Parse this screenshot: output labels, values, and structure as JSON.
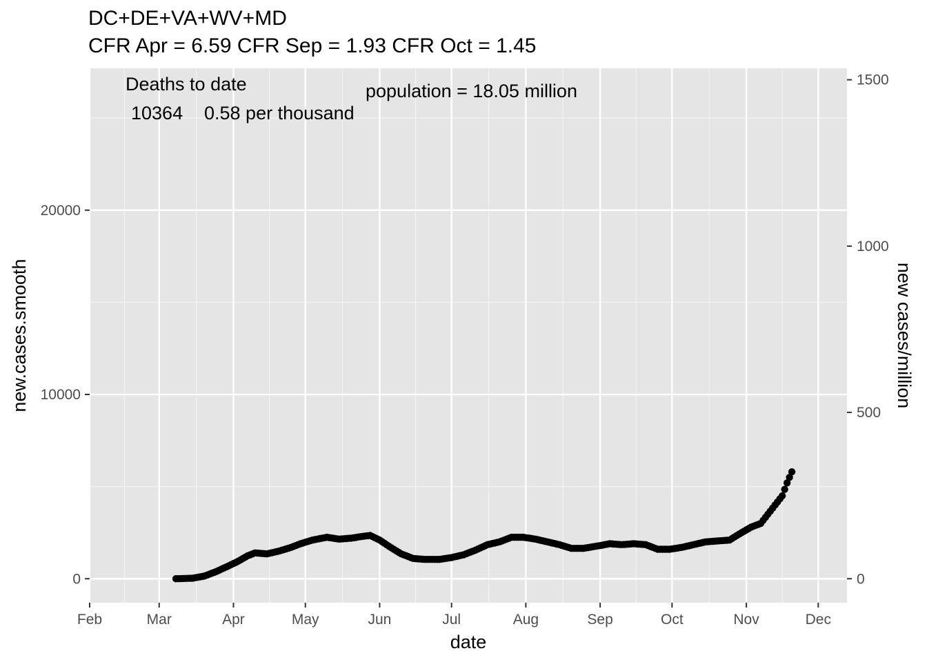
{
  "chart_data": {
    "type": "scatter",
    "title": "DC+DE+VA+WV+MD",
    "subtitle": "CFR Apr = 6.59  CFR Sep = 1.93  CFR Oct = 1.45",
    "xlabel": "date",
    "ylabel": "new.cases.smooth",
    "y2label": "new cases/million",
    "x_tick_labels": [
      "Feb",
      "Mar",
      "Apr",
      "May",
      "Jun",
      "Jul",
      "Aug",
      "Sep",
      "Oct",
      "Nov",
      "Dec"
    ],
    "y_ticks": [
      0,
      10000,
      20000
    ],
    "y_tick_labels": [
      "0",
      "10000",
      "20000"
    ],
    "y2_ticks": [
      0,
      500,
      1000,
      1500
    ],
    "y2_tick_labels": [
      "0",
      "500",
      "1000",
      "1500"
    ],
    "ylim": [
      -1300,
      27700
    ],
    "xlim": [
      "2020-02-01",
      "2020-12-13"
    ],
    "grid": true,
    "annotations": {
      "deaths_label": "Deaths to date",
      "deaths_value": "10364",
      "deaths_rate": "0.58 per thousand",
      "population": "population = 18.05 million"
    },
    "anchors": [
      [
        "2020-03-08",
        0
      ],
      [
        "2020-03-15",
        30
      ],
      [
        "2020-03-20",
        150
      ],
      [
        "2020-03-25",
        400
      ],
      [
        "2020-03-30",
        700
      ],
      [
        "2020-04-03",
        950
      ],
      [
        "2020-04-07",
        1250
      ],
      [
        "2020-04-10",
        1400
      ],
      [
        "2020-04-15",
        1350
      ],
      [
        "2020-04-20",
        1500
      ],
      [
        "2020-04-25",
        1700
      ],
      [
        "2020-04-29",
        1900
      ],
      [
        "2020-05-04",
        2100
      ],
      [
        "2020-05-10",
        2250
      ],
      [
        "2020-05-15",
        2150
      ],
      [
        "2020-05-20",
        2200
      ],
      [
        "2020-05-25",
        2300
      ],
      [
        "2020-05-28",
        2350
      ],
      [
        "2020-06-01",
        2100
      ],
      [
        "2020-06-05",
        1750
      ],
      [
        "2020-06-10",
        1350
      ],
      [
        "2020-06-15",
        1100
      ],
      [
        "2020-06-20",
        1050
      ],
      [
        "2020-06-26",
        1050
      ],
      [
        "2020-07-01",
        1150
      ],
      [
        "2020-07-06",
        1300
      ],
      [
        "2020-07-11",
        1550
      ],
      [
        "2020-07-16",
        1850
      ],
      [
        "2020-07-21",
        2000
      ],
      [
        "2020-07-26",
        2250
      ],
      [
        "2020-07-31",
        2250
      ],
      [
        "2020-08-05",
        2150
      ],
      [
        "2020-08-10",
        2000
      ],
      [
        "2020-08-15",
        1850
      ],
      [
        "2020-08-20",
        1650
      ],
      [
        "2020-08-25",
        1650
      ],
      [
        "2020-09-01",
        1800
      ],
      [
        "2020-09-05",
        1900
      ],
      [
        "2020-09-10",
        1850
      ],
      [
        "2020-09-15",
        1900
      ],
      [
        "2020-09-20",
        1850
      ],
      [
        "2020-09-25",
        1600
      ],
      [
        "2020-09-30",
        1600
      ],
      [
        "2020-10-05",
        1700
      ],
      [
        "2020-10-10",
        1850
      ],
      [
        "2020-10-15",
        2000
      ],
      [
        "2020-10-20",
        2050
      ],
      [
        "2020-10-25",
        2100
      ],
      [
        "2020-10-30",
        2500
      ],
      [
        "2020-11-03",
        2800
      ],
      [
        "2020-11-07",
        3000
      ],
      [
        "2020-11-10",
        3500
      ],
      [
        "2020-11-13",
        4000
      ],
      [
        "2020-11-16",
        4500
      ],
      [
        "2020-11-18",
        5200
      ],
      [
        "2020-11-20",
        5800
      ]
    ]
  }
}
